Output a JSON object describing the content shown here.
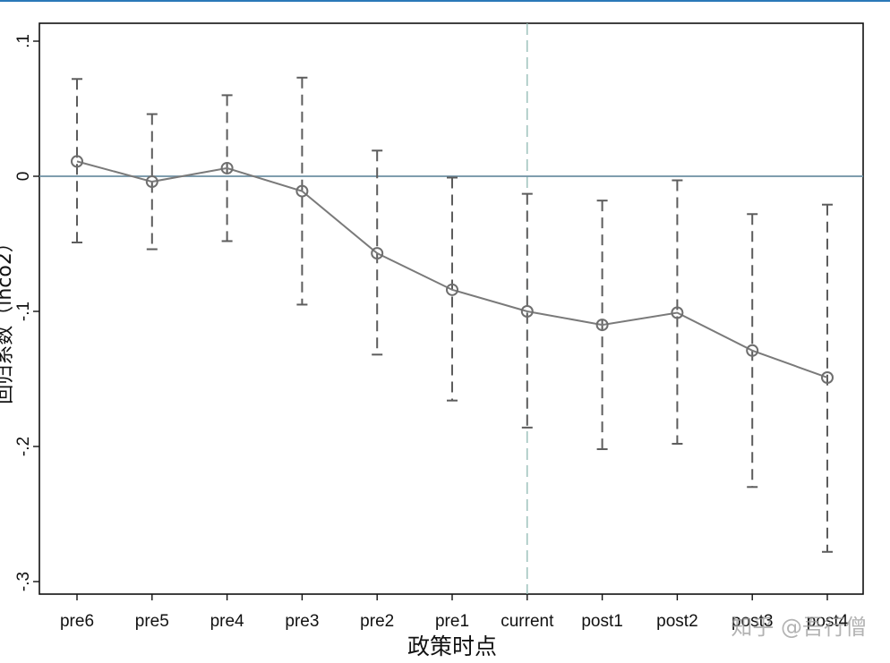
{
  "chart_data": {
    "type": "line",
    "xlabel": "政策时点",
    "ylabel": "回归系数（lnco2）",
    "ylim": [
      -0.31,
      0.115
    ],
    "yticks": [
      {
        "value": 0.1,
        "label": ".1"
      },
      {
        "value": 0,
        "label": "0"
      },
      {
        "value": -0.1,
        "label": "-.1"
      },
      {
        "value": -0.2,
        "label": "-.2"
      },
      {
        "value": -0.3,
        "label": "-.3"
      }
    ],
    "categories": [
      "pre6",
      "pre5",
      "pre4",
      "pre3",
      "pre2",
      "pre1",
      "current",
      "post1",
      "post2",
      "post3",
      "post4"
    ],
    "estimate": [
      0.011,
      -0.004,
      0.006,
      -0.011,
      -0.057,
      -0.084,
      -0.1,
      -0.11,
      -0.101,
      -0.129,
      -0.149
    ],
    "ci_lower": [
      -0.049,
      -0.054,
      -0.048,
      -0.095,
      -0.132,
      -0.166,
      -0.186,
      -0.202,
      -0.198,
      -0.23,
      -0.278
    ],
    "ci_upper": [
      0.072,
      0.046,
      0.06,
      0.073,
      0.019,
      -0.001,
      -0.013,
      -0.018,
      -0.003,
      -0.028,
      -0.021
    ],
    "reference_line_y": 0,
    "reference_line_x": "current",
    "grid": false,
    "colors": {
      "line": "#7a7a7a",
      "marker": "#6e6e6e",
      "ci": "#5c5c5c",
      "zero_line": "#6d8fa3",
      "vline": "#8fb9b3",
      "axis": "#111111"
    }
  },
  "watermark": "知乎 @吾行僧"
}
